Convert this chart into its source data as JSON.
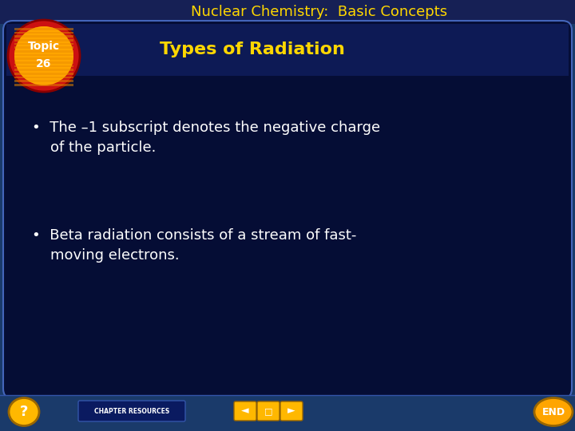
{
  "bg_color": "#1a3a6a",
  "outer_bg": "#1a3a6a",
  "header_bg": "#1a3a6a",
  "content_bg": "#050d35",
  "content_border": "#4466bb",
  "title_text": "Nuclear Chemistry:  Basic Concepts",
  "title_color": "#FFD700",
  "title_fontsize": 13,
  "subtitle_text": "Types of Radiation",
  "subtitle_color": "#FFD700",
  "subtitle_fontsize": 16,
  "bullet1_line1": "•  The –1 subscript denotes the negative charge",
  "bullet1_line2": "    of the particle.",
  "bullet2_line1": "•  Beta radiation consists of a stream of fast-",
  "bullet2_line2": "    moving electrons.",
  "bullet_color": "#FFFFFF",
  "bullet_fontsize": 13,
  "topic_outer_color": "#CC1111",
  "topic_inner_color": "#FFA500",
  "topic_stripe_color": "#E08000",
  "topic_text_color": "#FFFFFF",
  "footer_text": "CHAPTER RESOURCES",
  "footer_color": "#FFFFFF",
  "footer_bg": "#0a1a60",
  "nav_color": "#FFB800",
  "end_color": "#FFA500",
  "bottom_bg": "#1a3a6a"
}
